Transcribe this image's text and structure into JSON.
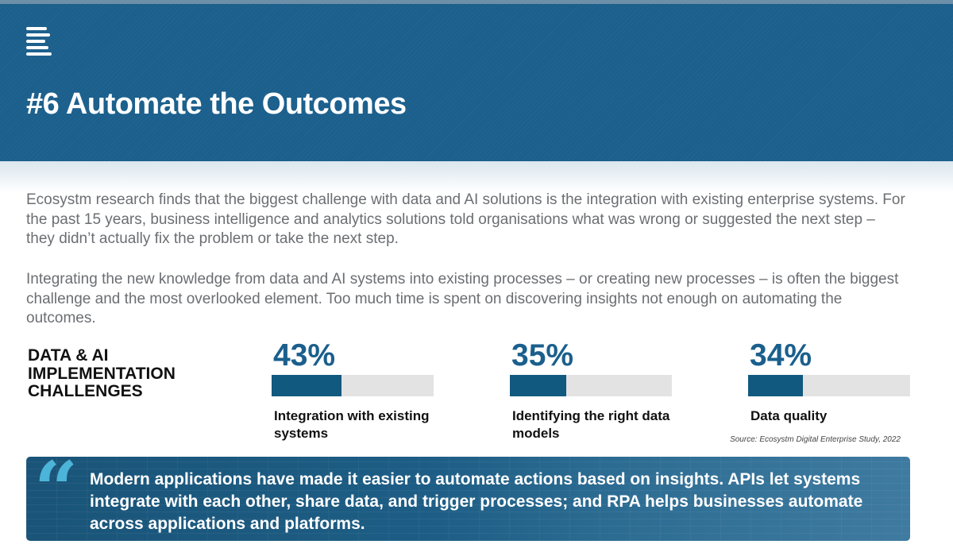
{
  "header": {
    "title": "#6 Automate the Outcomes",
    "background_color": "#1b5f8c",
    "logo_icon": "stacked-lines-logo"
  },
  "body": {
    "paragraph_1": "Ecosystm research finds that the biggest challenge with data and AI solutions is the integration with existing enterprise systems. For the past 15 years, business intelligence and analytics solutions told organisations what was wrong or suggested the next step – they didn’t actually fix the problem or take the next step.",
    "paragraph_2": "Integrating the new knowledge from data and AI systems into existing processes – or creating new processes – is often the biggest challenge and the most overlooked element. Too much time is spent on discovering insights not enough on automating the outcomes."
  },
  "challenges": {
    "title": "DATA & AI IMPLEMENTATION CHALLENGES",
    "items": [
      {
        "value": "43%",
        "percent": 43,
        "label": "Integration with existing systems"
      },
      {
        "value": "35%",
        "percent": 35,
        "label": "Identifying the right data models"
      },
      {
        "value": "34%",
        "percent": 34,
        "label": "Data quality"
      }
    ],
    "bar_color": "#12597f",
    "bar_track_color": "#e3e3e3",
    "source": "Source: Ecosystm Digital Enterprise Study, 2022"
  },
  "quote": {
    "mark": "“",
    "mark_color": "#4cb4d8",
    "text": "Modern applications have made it easier to automate actions based on insights. APIs let systems integrate with each other, share data, and trigger processes; and RPA helps businesses automate across applications and platforms."
  }
}
